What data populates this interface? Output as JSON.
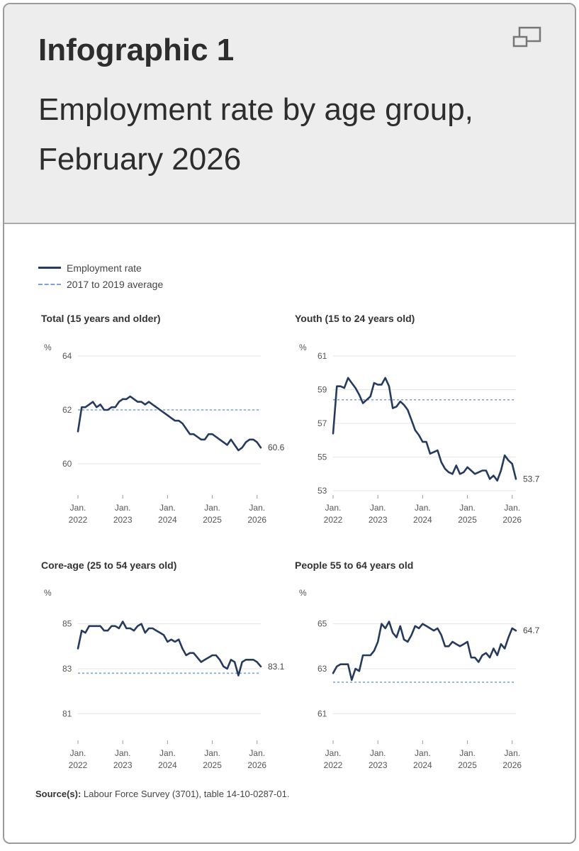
{
  "header": {
    "kicker": "Infographic 1",
    "title": "Employment rate by age group, February 2026",
    "expand_icon": "expand-window-icon"
  },
  "legend": {
    "items": [
      {
        "label": "Employment rate",
        "style": "solid",
        "color": "#263a5e"
      },
      {
        "label": "2017 to 2019 average",
        "style": "dotted",
        "color": "#7f9fd6"
      }
    ]
  },
  "source": {
    "label": "Source(s):",
    "text": "Labour Force Survey (3701), table 14-10-0287-01."
  },
  "chart_data": [
    {
      "type": "line",
      "title": "Total (15 years and older)",
      "unit": "%",
      "x_start": "2022-01",
      "x_ticks": [
        "Jan. 2022",
        "Jan. 2023",
        "Jan. 2024",
        "Jan. 2025",
        "Jan. 2026"
      ],
      "y_ticks": [
        60,
        62,
        64
      ],
      "ylim": [
        59,
        64
      ],
      "average": 62.0,
      "end_label": "60.6",
      "series": [
        {
          "values": [
            61.2,
            62.1,
            62.1,
            62.2,
            62.3,
            62.1,
            62.2,
            62.0,
            62.0,
            62.1,
            62.1,
            62.3,
            62.4,
            62.4,
            62.5,
            62.4,
            62.3,
            62.3,
            62.2,
            62.3,
            62.2,
            62.1,
            62.0,
            61.9,
            61.8,
            61.7,
            61.6,
            61.6,
            61.5,
            61.3,
            61.1,
            61.1,
            61.0,
            60.9,
            60.9,
            61.1,
            61.1,
            61.0,
            60.9,
            60.8,
            60.7,
            60.9,
            60.7,
            60.5,
            60.6,
            60.8,
            60.9,
            60.9,
            60.8,
            60.6
          ]
        }
      ]
    },
    {
      "type": "line",
      "title": "Youth (15 to 24 years old)",
      "unit": "%",
      "x_start": "2022-01",
      "x_ticks": [
        "Jan. 2022",
        "Jan. 2023",
        "Jan. 2024",
        "Jan. 2025",
        "Jan. 2026"
      ],
      "y_ticks": [
        53,
        55,
        57,
        59,
        61
      ],
      "ylim": [
        53,
        61
      ],
      "average": 58.4,
      "end_label": "53.7",
      "series": [
        {
          "values": [
            56.4,
            59.2,
            59.2,
            59.1,
            59.7,
            59.4,
            59.1,
            58.7,
            58.2,
            58.4,
            58.6,
            59.4,
            59.3,
            59.3,
            59.7,
            59.2,
            57.9,
            58.0,
            58.3,
            58.1,
            57.8,
            57.2,
            56.6,
            56.3,
            55.9,
            55.9,
            55.2,
            55.3,
            55.4,
            54.7,
            54.3,
            54.1,
            54.0,
            54.5,
            54.0,
            54.1,
            54.4,
            54.2,
            54.0,
            54.1,
            54.2,
            54.2,
            53.7,
            53.9,
            53.6,
            54.2,
            55.1,
            54.8,
            54.6,
            53.7
          ]
        }
      ]
    },
    {
      "type": "line",
      "title": "Core-age (25 to 54 years old)",
      "unit": "%",
      "x_start": "2022-01",
      "x_ticks": [
        "Jan. 2022",
        "Jan. 2023",
        "Jan. 2024",
        "Jan. 2025",
        "Jan. 2026"
      ],
      "y_ticks": [
        81,
        83,
        85
      ],
      "ylim": [
        80,
        86
      ],
      "average": 82.8,
      "end_label": "83.1",
      "series": [
        {
          "values": [
            83.9,
            84.7,
            84.6,
            84.9,
            84.9,
            84.9,
            84.9,
            84.7,
            84.7,
            84.9,
            84.9,
            84.8,
            85.1,
            84.8,
            84.8,
            84.7,
            84.9,
            85.0,
            84.6,
            84.8,
            84.8,
            84.7,
            84.6,
            84.5,
            84.2,
            84.3,
            84.2,
            84.3,
            83.9,
            83.6,
            83.7,
            83.7,
            83.5,
            83.3,
            83.4,
            83.5,
            83.6,
            83.6,
            83.4,
            83.1,
            83.0,
            83.4,
            83.3,
            82.7,
            83.3,
            83.4,
            83.4,
            83.4,
            83.3,
            83.1
          ]
        }
      ]
    },
    {
      "type": "line",
      "title": "People 55 to 64 years old",
      "unit": "%",
      "x_start": "2022-01",
      "x_ticks": [
        "Jan. 2022",
        "Jan. 2023",
        "Jan. 2024",
        "Jan. 2025",
        "Jan. 2026"
      ],
      "y_ticks": [
        61,
        63,
        65
      ],
      "ylim": [
        60,
        66
      ],
      "average": 62.4,
      "end_label": "64.7",
      "series": [
        {
          "values": [
            62.8,
            63.1,
            63.2,
            63.2,
            63.2,
            62.5,
            63.0,
            62.9,
            63.6,
            63.6,
            63.6,
            63.8,
            64.2,
            65.0,
            64.8,
            65.1,
            64.6,
            64.4,
            64.9,
            64.3,
            64.2,
            64.5,
            64.9,
            64.8,
            65.0,
            64.9,
            64.8,
            64.7,
            64.8,
            64.5,
            64.0,
            64.0,
            64.2,
            64.1,
            64.0,
            64.1,
            64.2,
            63.5,
            63.5,
            63.3,
            63.6,
            63.7,
            63.5,
            63.9,
            63.6,
            64.1,
            63.9,
            64.4,
            64.8,
            64.7
          ]
        }
      ]
    }
  ]
}
